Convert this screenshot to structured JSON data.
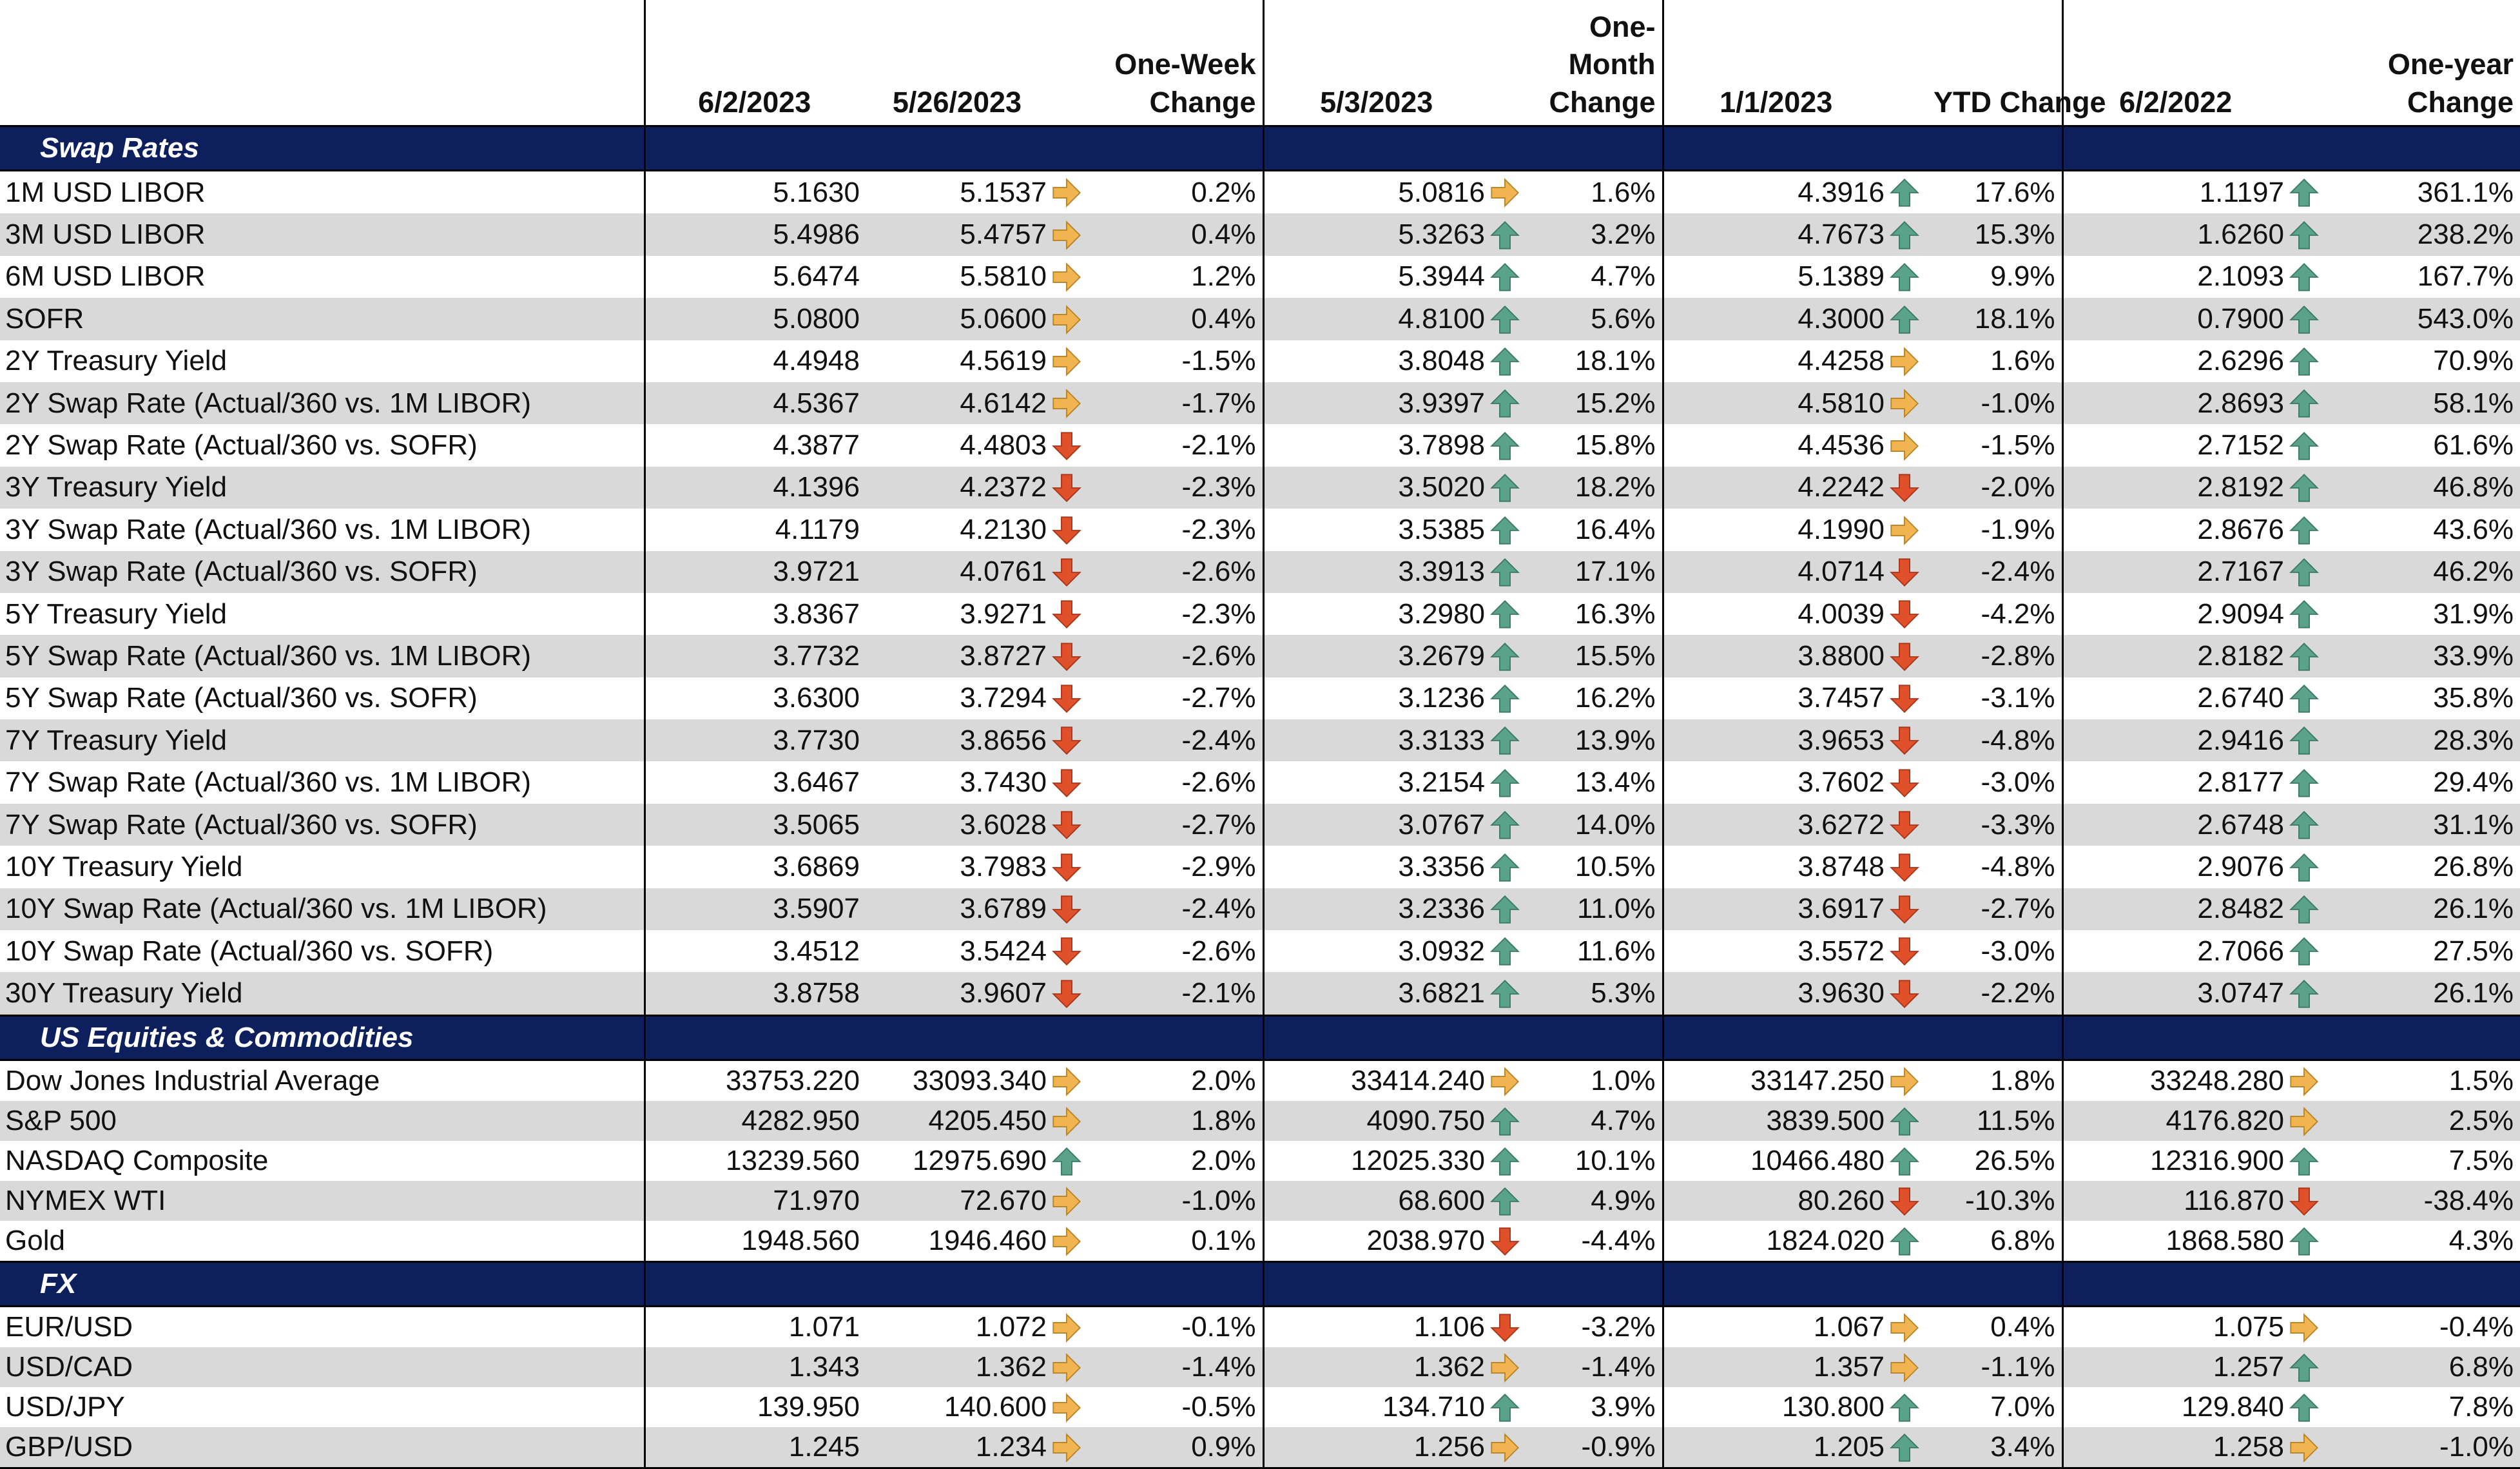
{
  "header": {
    "d1": "6/2/2023",
    "d2": "5/26/2023",
    "c1": "One-Week\nChange",
    "d3": "5/3/2023",
    "c2": "One-Month\nChange",
    "d4": "1/1/2023",
    "c3": "YTD Change",
    "d5": "6/2/2022",
    "c4": "One-year\nChange"
  },
  "colors": {
    "header_bg": "#0d1f5c",
    "band": "#d9d9d9",
    "up": "#5aa38a",
    "down": "#e0502a",
    "flat": "#f0b450"
  },
  "sections": [
    {
      "title": "Swap Rates",
      "rows": [
        {
          "name": "1M USD LIBOR",
          "v1": "5.1630",
          "v2": "5.1537",
          "a1": "flat",
          "c1": "0.2%",
          "v3": "5.0816",
          "a2": "flat",
          "c2": "1.6%",
          "v4": "4.3916",
          "a3": "up",
          "c3": "17.6%",
          "v5": "1.1197",
          "a4": "up",
          "c4": "361.1%"
        },
        {
          "name": "3M USD LIBOR",
          "v1": "5.4986",
          "v2": "5.4757",
          "a1": "flat",
          "c1": "0.4%",
          "v3": "5.3263",
          "a2": "up",
          "c2": "3.2%",
          "v4": "4.7673",
          "a3": "up",
          "c3": "15.3%",
          "v5": "1.6260",
          "a4": "up",
          "c4": "238.2%"
        },
        {
          "name": "6M USD LIBOR",
          "v1": "5.6474",
          "v2": "5.5810",
          "a1": "flat",
          "c1": "1.2%",
          "v3": "5.3944",
          "a2": "up",
          "c2": "4.7%",
          "v4": "5.1389",
          "a3": "up",
          "c3": "9.9%",
          "v5": "2.1093",
          "a4": "up",
          "c4": "167.7%"
        },
        {
          "name": "SOFR",
          "v1": "5.0800",
          "v2": "5.0600",
          "a1": "flat",
          "c1": "0.4%",
          "v3": "4.8100",
          "a2": "up",
          "c2": "5.6%",
          "v4": "4.3000",
          "a3": "up",
          "c3": "18.1%",
          "v5": "0.7900",
          "a4": "up",
          "c4": "543.0%"
        },
        {
          "name": "2Y Treasury Yield",
          "v1": "4.4948",
          "v2": "4.5619",
          "a1": "flat",
          "c1": "-1.5%",
          "v3": "3.8048",
          "a2": "up",
          "c2": "18.1%",
          "v4": "4.4258",
          "a3": "flat",
          "c3": "1.6%",
          "v5": "2.6296",
          "a4": "up",
          "c4": "70.9%"
        },
        {
          "name": "2Y Swap Rate (Actual/360 vs. 1M LIBOR)",
          "v1": "4.5367",
          "v2": "4.6142",
          "a1": "flat",
          "c1": "-1.7%",
          "v3": "3.9397",
          "a2": "up",
          "c2": "15.2%",
          "v4": "4.5810",
          "a3": "flat",
          "c3": "-1.0%",
          "v5": "2.8693",
          "a4": "up",
          "c4": "58.1%"
        },
        {
          "name": "2Y Swap Rate (Actual/360 vs. SOFR)",
          "v1": "4.3877",
          "v2": "4.4803",
          "a1": "down",
          "c1": "-2.1%",
          "v3": "3.7898",
          "a2": "up",
          "c2": "15.8%",
          "v4": "4.4536",
          "a3": "flat",
          "c3": "-1.5%",
          "v5": "2.7152",
          "a4": "up",
          "c4": "61.6%"
        },
        {
          "name": "3Y Treasury Yield",
          "v1": "4.1396",
          "v2": "4.2372",
          "a1": "down",
          "c1": "-2.3%",
          "v3": "3.5020",
          "a2": "up",
          "c2": "18.2%",
          "v4": "4.2242",
          "a3": "down",
          "c3": "-2.0%",
          "v5": "2.8192",
          "a4": "up",
          "c4": "46.8%"
        },
        {
          "name": "3Y Swap Rate (Actual/360 vs. 1M LIBOR)",
          "v1": "4.1179",
          "v2": "4.2130",
          "a1": "down",
          "c1": "-2.3%",
          "v3": "3.5385",
          "a2": "up",
          "c2": "16.4%",
          "v4": "4.1990",
          "a3": "flat",
          "c3": "-1.9%",
          "v5": "2.8676",
          "a4": "up",
          "c4": "43.6%"
        },
        {
          "name": "3Y Swap Rate (Actual/360 vs. SOFR)",
          "v1": "3.9721",
          "v2": "4.0761",
          "a1": "down",
          "c1": "-2.6%",
          "v3": "3.3913",
          "a2": "up",
          "c2": "17.1%",
          "v4": "4.0714",
          "a3": "down",
          "c3": "-2.4%",
          "v5": "2.7167",
          "a4": "up",
          "c4": "46.2%"
        },
        {
          "name": "5Y Treasury Yield",
          "v1": "3.8367",
          "v2": "3.9271",
          "a1": "down",
          "c1": "-2.3%",
          "v3": "3.2980",
          "a2": "up",
          "c2": "16.3%",
          "v4": "4.0039",
          "a3": "down",
          "c3": "-4.2%",
          "v5": "2.9094",
          "a4": "up",
          "c4": "31.9%"
        },
        {
          "name": "5Y Swap Rate (Actual/360 vs. 1M LIBOR)",
          "v1": "3.7732",
          "v2": "3.8727",
          "a1": "down",
          "c1": "-2.6%",
          "v3": "3.2679",
          "a2": "up",
          "c2": "15.5%",
          "v4": "3.8800",
          "a3": "down",
          "c3": "-2.8%",
          "v5": "2.8182",
          "a4": "up",
          "c4": "33.9%"
        },
        {
          "name": "5Y Swap Rate (Actual/360 vs. SOFR)",
          "v1": "3.6300",
          "v2": "3.7294",
          "a1": "down",
          "c1": "-2.7%",
          "v3": "3.1236",
          "a2": "up",
          "c2": "16.2%",
          "v4": "3.7457",
          "a3": "down",
          "c3": "-3.1%",
          "v5": "2.6740",
          "a4": "up",
          "c4": "35.8%"
        },
        {
          "name": "7Y Treasury Yield",
          "v1": "3.7730",
          "v2": "3.8656",
          "a1": "down",
          "c1": "-2.4%",
          "v3": "3.3133",
          "a2": "up",
          "c2": "13.9%",
          "v4": "3.9653",
          "a3": "down",
          "c3": "-4.8%",
          "v5": "2.9416",
          "a4": "up",
          "c4": "28.3%"
        },
        {
          "name": "7Y Swap Rate (Actual/360 vs. 1M LIBOR)",
          "v1": "3.6467",
          "v2": "3.7430",
          "a1": "down",
          "c1": "-2.6%",
          "v3": "3.2154",
          "a2": "up",
          "c2": "13.4%",
          "v4": "3.7602",
          "a3": "down",
          "c3": "-3.0%",
          "v5": "2.8177",
          "a4": "up",
          "c4": "29.4%"
        },
        {
          "name": "7Y Swap Rate (Actual/360 vs. SOFR)",
          "v1": "3.5065",
          "v2": "3.6028",
          "a1": "down",
          "c1": "-2.7%",
          "v3": "3.0767",
          "a2": "up",
          "c2": "14.0%",
          "v4": "3.6272",
          "a3": "down",
          "c3": "-3.3%",
          "v5": "2.6748",
          "a4": "up",
          "c4": "31.1%"
        },
        {
          "name": "10Y Treasury Yield",
          "v1": "3.6869",
          "v2": "3.7983",
          "a1": "down",
          "c1": "-2.9%",
          "v3": "3.3356",
          "a2": "up",
          "c2": "10.5%",
          "v4": "3.8748",
          "a3": "down",
          "c3": "-4.8%",
          "v5": "2.9076",
          "a4": "up",
          "c4": "26.8%"
        },
        {
          "name": "10Y Swap Rate (Actual/360 vs. 1M LIBOR)",
          "v1": "3.5907",
          "v2": "3.6789",
          "a1": "down",
          "c1": "-2.4%",
          "v3": "3.2336",
          "a2": "up",
          "c2": "11.0%",
          "v4": "3.6917",
          "a3": "down",
          "c3": "-2.7%",
          "v5": "2.8482",
          "a4": "up",
          "c4": "26.1%"
        },
        {
          "name": "10Y Swap Rate (Actual/360 vs. SOFR)",
          "v1": "3.4512",
          "v2": "3.5424",
          "a1": "down",
          "c1": "-2.6%",
          "v3": "3.0932",
          "a2": "up",
          "c2": "11.6%",
          "v4": "3.5572",
          "a3": "down",
          "c3": "-3.0%",
          "v5": "2.7066",
          "a4": "up",
          "c4": "27.5%"
        },
        {
          "name": "30Y Treasury Yield",
          "v1": "3.8758",
          "v2": "3.9607",
          "a1": "down",
          "c1": "-2.1%",
          "v3": "3.6821",
          "a2": "up",
          "c2": "5.3%",
          "v4": "3.9630",
          "a3": "down",
          "c3": "-2.2%",
          "v5": "3.0747",
          "a4": "up",
          "c4": "26.1%"
        }
      ]
    },
    {
      "title": "US Equities & Commodities",
      "rows": [
        {
          "name": "Dow Jones Industrial Average",
          "v1": "33753.220",
          "v2": "33093.340",
          "a1": "flat",
          "c1": "2.0%",
          "v3": "33414.240",
          "a2": "flat",
          "c2": "1.0%",
          "v4": "33147.250",
          "a3": "flat",
          "c3": "1.8%",
          "v5": "33248.280",
          "a4": "flat",
          "c4": "1.5%"
        },
        {
          "name": "S&P 500",
          "v1": "4282.950",
          "v2": "4205.450",
          "a1": "flat",
          "c1": "1.8%",
          "v3": "4090.750",
          "a2": "up",
          "c2": "4.7%",
          "v4": "3839.500",
          "a3": "up",
          "c3": "11.5%",
          "v5": "4176.820",
          "a4": "flat",
          "c4": "2.5%"
        },
        {
          "name": "NASDAQ Composite",
          "v1": "13239.560",
          "v2": "12975.690",
          "a1": "up",
          "c1": "2.0%",
          "v3": "12025.330",
          "a2": "up",
          "c2": "10.1%",
          "v4": "10466.480",
          "a3": "up",
          "c3": "26.5%",
          "v5": "12316.900",
          "a4": "up",
          "c4": "7.5%"
        },
        {
          "name": "NYMEX WTI",
          "v1": "71.970",
          "v2": "72.670",
          "a1": "flat",
          "c1": "-1.0%",
          "v3": "68.600",
          "a2": "up",
          "c2": "4.9%",
          "v4": "80.260",
          "a3": "down",
          "c3": "-10.3%",
          "v5": "116.870",
          "a4": "down",
          "c4": "-38.4%"
        },
        {
          "name": "Gold",
          "v1": "1948.560",
          "v2": "1946.460",
          "a1": "flat",
          "c1": "0.1%",
          "v3": "2038.970",
          "a2": "down",
          "c2": "-4.4%",
          "v4": "1824.020",
          "a3": "up",
          "c3": "6.8%",
          "v5": "1868.580",
          "a4": "up",
          "c4": "4.3%"
        }
      ]
    },
    {
      "title": "FX",
      "rows": [
        {
          "name": "EUR/USD",
          "v1": "1.071",
          "v2": "1.072",
          "a1": "flat",
          "c1": "-0.1%",
          "v3": "1.106",
          "a2": "down",
          "c2": "-3.2%",
          "v4": "1.067",
          "a3": "flat",
          "c3": "0.4%",
          "v5": "1.075",
          "a4": "flat",
          "c4": "-0.4%"
        },
        {
          "name": "USD/CAD",
          "v1": "1.343",
          "v2": "1.362",
          "a1": "flat",
          "c1": "-1.4%",
          "v3": "1.362",
          "a2": "flat",
          "c2": "-1.4%",
          "v4": "1.357",
          "a3": "flat",
          "c3": "-1.1%",
          "v5": "1.257",
          "a4": "up",
          "c4": "6.8%"
        },
        {
          "name": "USD/JPY",
          "v1": "139.950",
          "v2": "140.600",
          "a1": "flat",
          "c1": "-0.5%",
          "v3": "134.710",
          "a2": "up",
          "c2": "3.9%",
          "v4": "130.800",
          "a3": "up",
          "c3": "7.0%",
          "v5": "129.840",
          "a4": "up",
          "c4": "7.8%"
        },
        {
          "name": "GBP/USD",
          "v1": "1.245",
          "v2": "1.234",
          "a1": "flat",
          "c1": "0.9%",
          "v3": "1.256",
          "a2": "flat",
          "c2": "-0.9%",
          "v4": "1.205",
          "a3": "up",
          "c3": "3.4%",
          "v5": "1.258",
          "a4": "flat",
          "c4": "-1.0%"
        }
      ]
    }
  ]
}
